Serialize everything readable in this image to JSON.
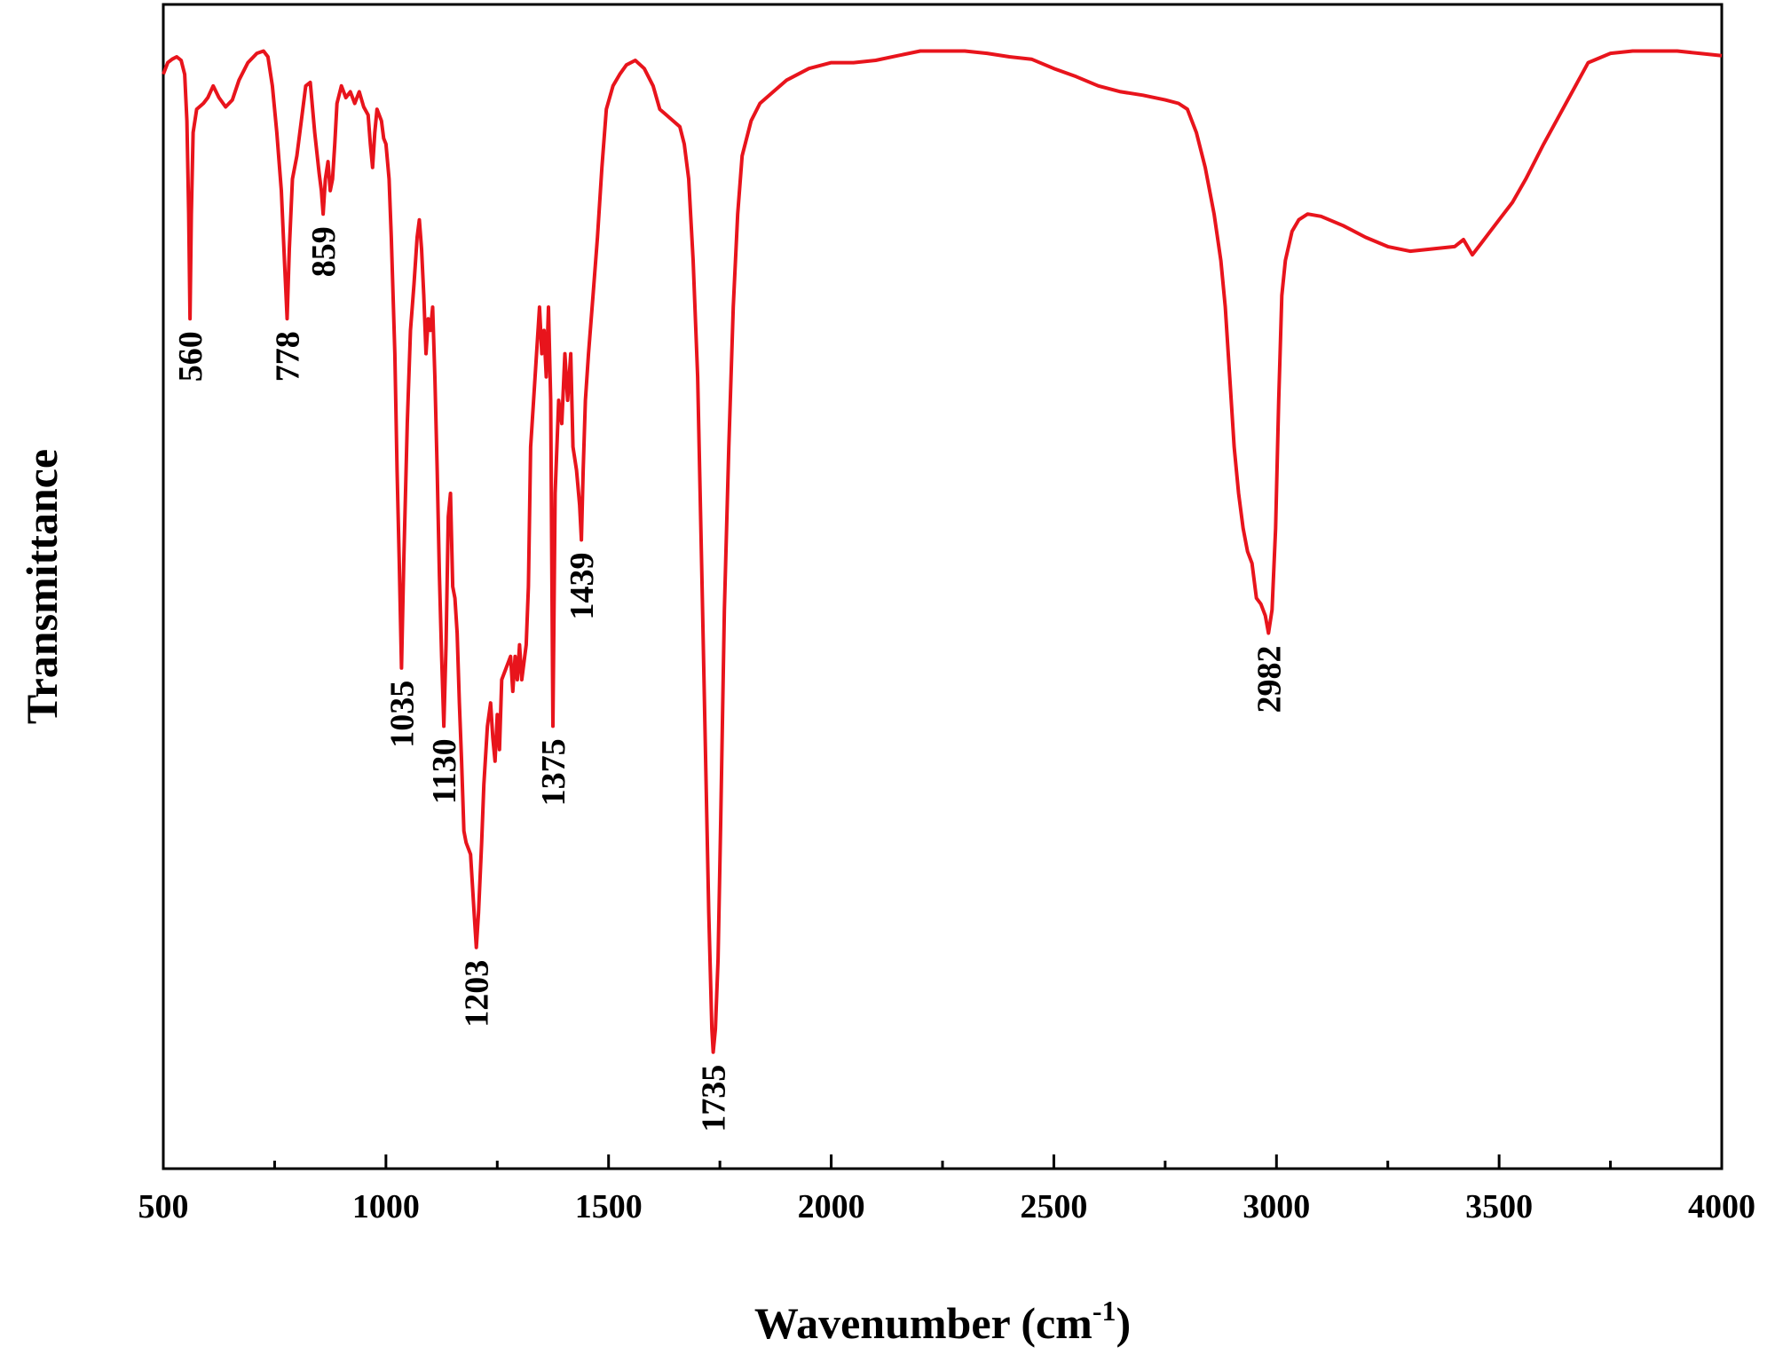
{
  "chart_data": {
    "type": "line",
    "title": "",
    "xlabel": "Wavenumber (cm",
    "xlabel_sup": "-1",
    "xlabel_close": ")",
    "ylabel": "Transmittance",
    "xlim": [
      500,
      4000
    ],
    "ylim": [
      0,
      100
    ],
    "y_ticks_shown": false,
    "grid": false,
    "legend": "none",
    "line_color": "#e8141c",
    "x_ticks": [
      {
        "value": 500,
        "label": "500"
      },
      {
        "value": 1000,
        "label": "1000"
      },
      {
        "value": 1500,
        "label": "1500"
      },
      {
        "value": 2000,
        "label": "2000"
      },
      {
        "value": 2500,
        "label": "2500"
      },
      {
        "value": 3000,
        "label": "3000"
      },
      {
        "value": 3500,
        "label": "3500"
      },
      {
        "value": 4000,
        "label": "4000"
      }
    ],
    "peak_labels": [
      {
        "label": "560",
        "x": 560,
        "y": 73
      },
      {
        "label": "778",
        "x": 778,
        "y": 73
      },
      {
        "label": "859",
        "x": 859,
        "y": 82
      },
      {
        "label": "1035",
        "x": 1035,
        "y": 43
      },
      {
        "label": "1130",
        "x": 1130,
        "y": 38
      },
      {
        "label": "1203",
        "x": 1203,
        "y": 19
      },
      {
        "label": "1375",
        "x": 1375,
        "y": 38
      },
      {
        "label": "1439",
        "x": 1439,
        "y": 54
      },
      {
        "label": "1735",
        "x": 1735,
        "y": 10
      },
      {
        "label": "2982",
        "x": 2982,
        "y": 46
      }
    ],
    "series": [
      {
        "values": [
          [
            500,
            94
          ],
          [
            510,
            95
          ],
          [
            520,
            95.3
          ],
          [
            530,
            95.5
          ],
          [
            540,
            95.2
          ],
          [
            548,
            94
          ],
          [
            553,
            90
          ],
          [
            557,
            82
          ],
          [
            560,
            73
          ],
          [
            563,
            82
          ],
          [
            567,
            89
          ],
          [
            575,
            91
          ],
          [
            590,
            91.5
          ],
          [
            600,
            92
          ],
          [
            612,
            93
          ],
          [
            625,
            92
          ],
          [
            640,
            91.2
          ],
          [
            655,
            91.8
          ],
          [
            670,
            93.5
          ],
          [
            690,
            95
          ],
          [
            710,
            95.8
          ],
          [
            725,
            96
          ],
          [
            735,
            95.5
          ],
          [
            745,
            93
          ],
          [
            755,
            89
          ],
          [
            765,
            84
          ],
          [
            772,
            78
          ],
          [
            778,
            73
          ],
          [
            783,
            79
          ],
          [
            790,
            85
          ],
          [
            800,
            87
          ],
          [
            810,
            90
          ],
          [
            820,
            93
          ],
          [
            830,
            93.3
          ],
          [
            840,
            89
          ],
          [
            850,
            85.5
          ],
          [
            855,
            84
          ],
          [
            859,
            82
          ],
          [
            864,
            85
          ],
          [
            870,
            86.5
          ],
          [
            875,
            84
          ],
          [
            880,
            85
          ],
          [
            885,
            88
          ],
          [
            890,
            91.5
          ],
          [
            900,
            93
          ],
          [
            910,
            92
          ],
          [
            920,
            92.5
          ],
          [
            930,
            91.5
          ],
          [
            940,
            92.5
          ],
          [
            950,
            91.2
          ],
          [
            960,
            90.5
          ],
          [
            965,
            88
          ],
          [
            970,
            86
          ],
          [
            975,
            89
          ],
          [
            980,
            91
          ],
          [
            990,
            90
          ],
          [
            995,
            88.5
          ],
          [
            1000,
            88
          ],
          [
            1007,
            85
          ],
          [
            1012,
            80
          ],
          [
            1020,
            70
          ],
          [
            1025,
            60
          ],
          [
            1030,
            52
          ],
          [
            1035,
            43
          ],
          [
            1040,
            52
          ],
          [
            1048,
            64
          ],
          [
            1055,
            72
          ],
          [
            1063,
            76
          ],
          [
            1070,
            80
          ],
          [
            1075,
            81.5
          ],
          [
            1080,
            79
          ],
          [
            1085,
            75
          ],
          [
            1090,
            70
          ],
          [
            1095,
            73
          ],
          [
            1100,
            72
          ],
          [
            1105,
            74
          ],
          [
            1110,
            68
          ],
          [
            1115,
            60
          ],
          [
            1120,
            51
          ],
          [
            1125,
            44
          ],
          [
            1130,
            38
          ],
          [
            1135,
            45
          ],
          [
            1140,
            56
          ],
          [
            1145,
            58
          ],
          [
            1150,
            50
          ],
          [
            1155,
            49
          ],
          [
            1160,
            46
          ],
          [
            1165,
            40
          ],
          [
            1170,
            35
          ],
          [
            1175,
            29
          ],
          [
            1180,
            28
          ],
          [
            1190,
            27
          ],
          [
            1198,
            22
          ],
          [
            1203,
            19
          ],
          [
            1208,
            22
          ],
          [
            1215,
            28
          ],
          [
            1220,
            33
          ],
          [
            1228,
            38
          ],
          [
            1235,
            40
          ],
          [
            1240,
            37
          ],
          [
            1245,
            35
          ],
          [
            1250,
            39
          ],
          [
            1255,
            36
          ],
          [
            1260,
            42
          ],
          [
            1270,
            43
          ],
          [
            1280,
            44
          ],
          [
            1285,
            41
          ],
          [
            1290,
            44
          ],
          [
            1295,
            42
          ],
          [
            1300,
            45
          ],
          [
            1305,
            42
          ],
          [
            1315,
            45
          ],
          [
            1320,
            50
          ],
          [
            1325,
            62
          ],
          [
            1335,
            68
          ],
          [
            1345,
            74
          ],
          [
            1350,
            70
          ],
          [
            1355,
            72
          ],
          [
            1360,
            68
          ],
          [
            1365,
            74
          ],
          [
            1370,
            66
          ],
          [
            1375,
            38
          ],
          [
            1380,
            58
          ],
          [
            1388,
            66
          ],
          [
            1395,
            64
          ],
          [
            1402,
            70
          ],
          [
            1408,
            66
          ],
          [
            1415,
            70
          ],
          [
            1420,
            62
          ],
          [
            1428,
            60
          ],
          [
            1435,
            57
          ],
          [
            1439,
            54
          ],
          [
            1443,
            60
          ],
          [
            1448,
            66
          ],
          [
            1455,
            70
          ],
          [
            1465,
            75
          ],
          [
            1475,
            80
          ],
          [
            1485,
            86
          ],
          [
            1495,
            91
          ],
          [
            1510,
            93
          ],
          [
            1525,
            94
          ],
          [
            1540,
            94.8
          ],
          [
            1560,
            95.2
          ],
          [
            1580,
            94.5
          ],
          [
            1600,
            93
          ],
          [
            1615,
            91
          ],
          [
            1630,
            90.5
          ],
          [
            1645,
            90
          ],
          [
            1660,
            89.5
          ],
          [
            1670,
            88
          ],
          [
            1680,
            85
          ],
          [
            1690,
            78
          ],
          [
            1700,
            68
          ],
          [
            1710,
            50
          ],
          [
            1718,
            35
          ],
          [
            1725,
            22
          ],
          [
            1732,
            12
          ],
          [
            1735,
            10
          ],
          [
            1740,
            12
          ],
          [
            1746,
            18
          ],
          [
            1752,
            30
          ],
          [
            1760,
            48
          ],
          [
            1770,
            62
          ],
          [
            1780,
            74
          ],
          [
            1790,
            82
          ],
          [
            1800,
            87
          ],
          [
            1820,
            90
          ],
          [
            1840,
            91.5
          ],
          [
            1870,
            92.5
          ],
          [
            1900,
            93.5
          ],
          [
            1950,
            94.5
          ],
          [
            2000,
            95
          ],
          [
            2050,
            95
          ],
          [
            2100,
            95.2
          ],
          [
            2150,
            95.6
          ],
          [
            2200,
            96
          ],
          [
            2250,
            96
          ],
          [
            2300,
            96
          ],
          [
            2350,
            95.8
          ],
          [
            2400,
            95.5
          ],
          [
            2450,
            95.3
          ],
          [
            2500,
            94.5
          ],
          [
            2550,
            93.8
          ],
          [
            2600,
            93
          ],
          [
            2650,
            92.5
          ],
          [
            2700,
            92.2
          ],
          [
            2750,
            91.8
          ],
          [
            2780,
            91.5
          ],
          [
            2800,
            91
          ],
          [
            2820,
            89
          ],
          [
            2840,
            86
          ],
          [
            2860,
            82
          ],
          [
            2875,
            78
          ],
          [
            2885,
            74
          ],
          [
            2895,
            68
          ],
          [
            2905,
            62
          ],
          [
            2915,
            58
          ],
          [
            2925,
            55
          ],
          [
            2935,
            53
          ],
          [
            2945,
            52
          ],
          [
            2955,
            49
          ],
          [
            2965,
            48.5
          ],
          [
            2975,
            47.5
          ],
          [
            2982,
            46
          ],
          [
            2990,
            48
          ],
          [
            2998,
            55
          ],
          [
            3005,
            66
          ],
          [
            3012,
            75
          ],
          [
            3020,
            78
          ],
          [
            3035,
            80.5
          ],
          [
            3050,
            81.5
          ],
          [
            3070,
            82
          ],
          [
            3100,
            81.8
          ],
          [
            3150,
            81
          ],
          [
            3200,
            80
          ],
          [
            3250,
            79.2
          ],
          [
            3300,
            78.8
          ],
          [
            3350,
            79
          ],
          [
            3400,
            79.2
          ],
          [
            3420,
            79.8
          ],
          [
            3440,
            78.5
          ],
          [
            3460,
            79.5
          ],
          [
            3480,
            80.5
          ],
          [
            3500,
            81.5
          ],
          [
            3530,
            83
          ],
          [
            3560,
            85
          ],
          [
            3600,
            88
          ],
          [
            3650,
            91.5
          ],
          [
            3700,
            95
          ],
          [
            3750,
            95.8
          ],
          [
            3800,
            96
          ],
          [
            3850,
            96
          ],
          [
            3900,
            96
          ],
          [
            3950,
            95.8
          ],
          [
            4000,
            95.6
          ]
        ]
      }
    ]
  }
}
